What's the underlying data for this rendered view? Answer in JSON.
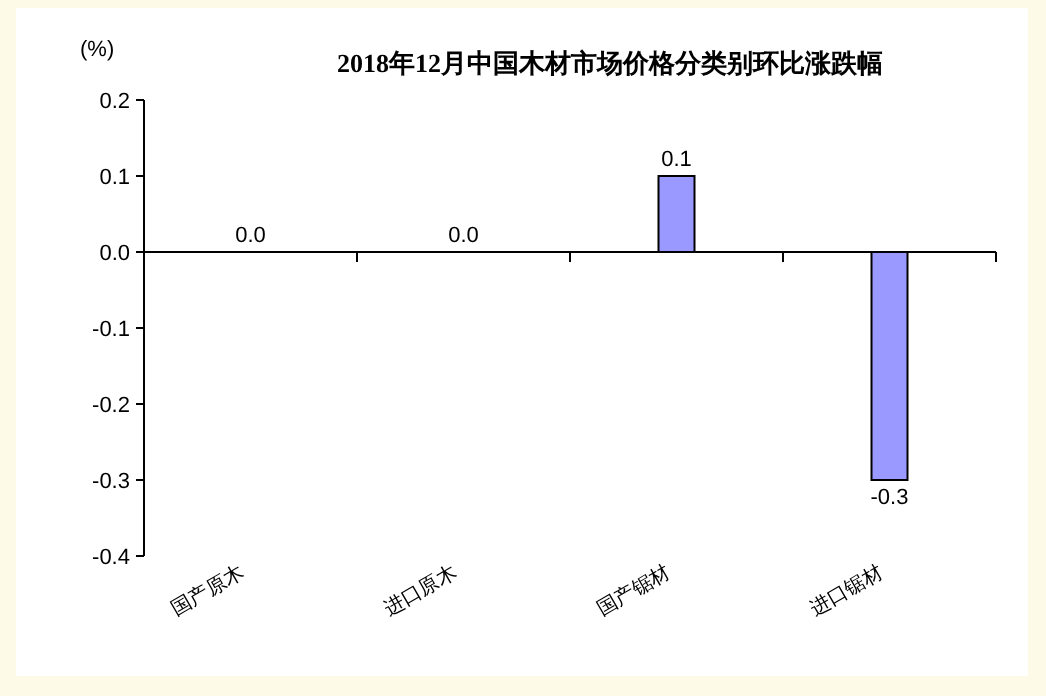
{
  "chart_data": {
    "type": "bar",
    "title": "2018年12月中国木材市场价格分类别环比涨跌幅",
    "ylabel": "(%)",
    "categories": [
      "国产原木",
      "进口原木",
      "国产锯材",
      "进口锯材"
    ],
    "values": [
      0.0,
      0.0,
      0.1,
      -0.3
    ],
    "value_labels": [
      "0.0",
      "0.0",
      "0.1",
      "-0.3"
    ],
    "color": "#9999ff",
    "ylim": [
      -0.4,
      0.2
    ],
    "yticks": [
      0.2,
      0.1,
      {
        "value": 0,
        "label": "0.0"
      },
      -0.1,
      -0.2,
      -0.3,
      -0.4
    ]
  }
}
